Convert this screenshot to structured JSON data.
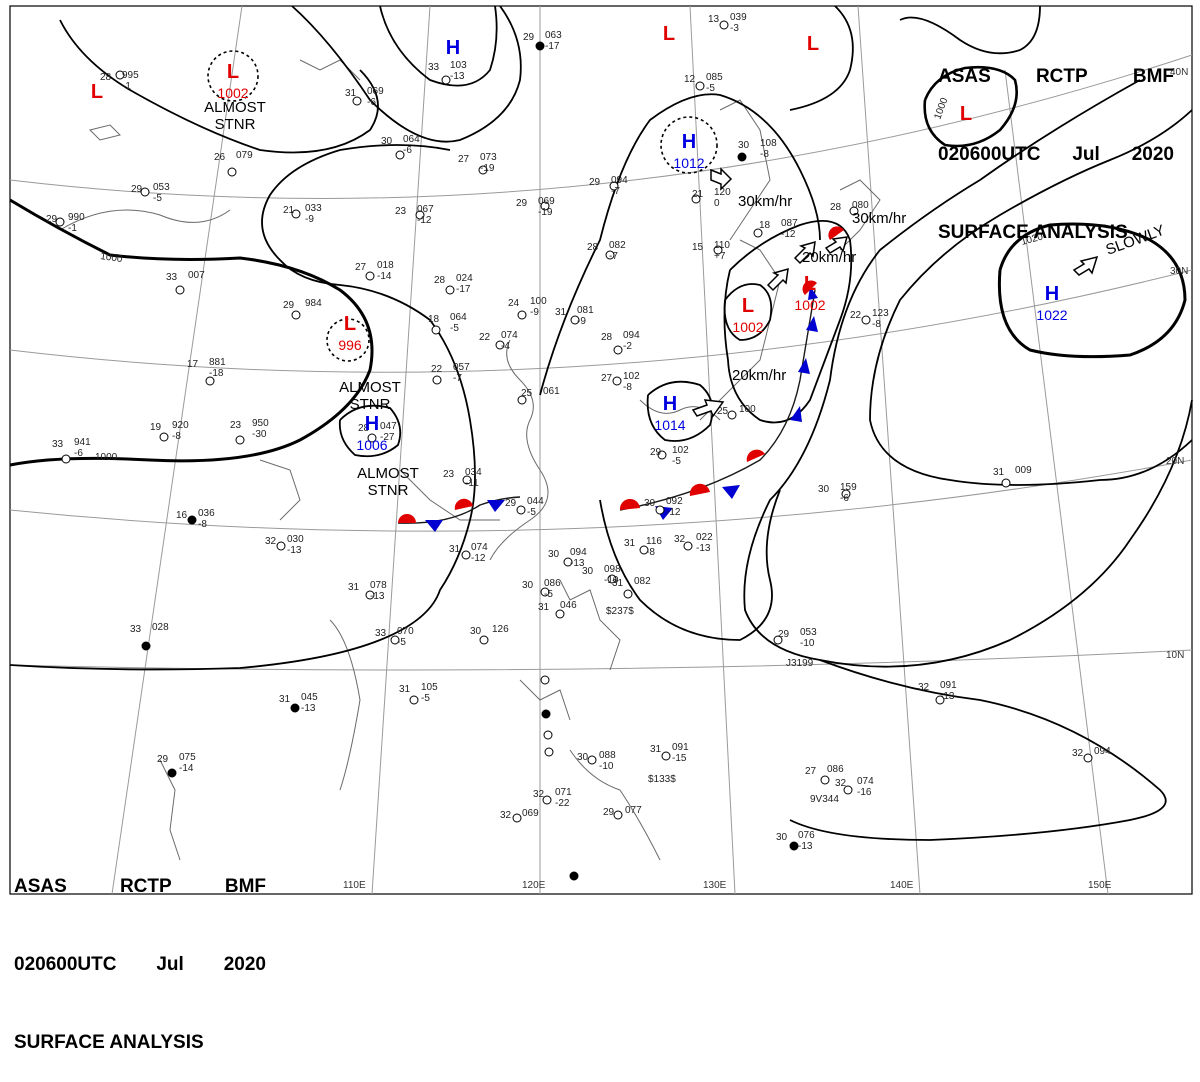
{
  "header": {
    "agency": "ASAS",
    "center": "RCTP",
    "code": "BMF",
    "datetime": "020600UTC",
    "month": "Jul",
    "year": "2020",
    "title": "SURFACE ANALYSIS"
  },
  "axes": {
    "longitudes": [
      "110E",
      "120E",
      "130E",
      "140E",
      "150E"
    ],
    "latitudes": [
      "40N",
      "30N",
      "20N",
      "10N"
    ]
  },
  "isobars": [
    "1000",
    "1000",
    "1000",
    "1020"
  ],
  "pressure_systems": [
    {
      "type": "L",
      "value": "1002",
      "color": "#e00000"
    },
    {
      "type": "L",
      "value": "",
      "color": "#e00000"
    },
    {
      "type": "L",
      "value": "",
      "color": "#e00000"
    },
    {
      "type": "L",
      "value": "",
      "color": "#e00000"
    },
    {
      "type": "L",
      "value": "",
      "color": "#e00000"
    },
    {
      "type": "L",
      "value": "996",
      "color": "#e00000"
    },
    {
      "type": "L",
      "value": "1002",
      "color": "#e00000"
    },
    {
      "type": "L",
      "value": "1002",
      "color": "#e00000"
    },
    {
      "type": "H",
      "value": "",
      "color": "#0000e0"
    },
    {
      "type": "H",
      "value": "1012",
      "color": "#0000e0"
    },
    {
      "type": "H",
      "value": "1006",
      "color": "#0000e0"
    },
    {
      "type": "H",
      "value": "1014",
      "color": "#0000e0"
    },
    {
      "type": "H",
      "value": "1022",
      "color": "#0000e0"
    }
  ],
  "labels": {
    "almost_stnr_1": "ALMOST\nSTNR",
    "almost_stnr_2": "ALMOST\nSTNR",
    "almost_stnr_3": "ALMOST\nSTNR",
    "slowly": "SLOWLY"
  },
  "movements": [
    "30km/hr",
    "20km/hr",
    "30km/hr",
    "20km/hr"
  ],
  "stations": [
    {
      "t": "28",
      "p": "995",
      "sub": "-1"
    },
    {
      "t": "29",
      "p": "063",
      "sub": "-17"
    },
    {
      "t": "33",
      "p": "103",
      "sub": "-13"
    },
    {
      "t": "13",
      "p": "039",
      "sub": "-3"
    },
    {
      "t": "31",
      "p": "069",
      "sub": "-6"
    },
    {
      "t": "30",
      "p": "064",
      "sub": "-6"
    },
    {
      "t": "27",
      "p": "073",
      "sub": "-19"
    },
    {
      "t": "12",
      "p": "085",
      "sub": "-5"
    },
    {
      "t": "26",
      "p": "079",
      "sub": ""
    },
    {
      "t": "29",
      "p": "053",
      "sub": "-5"
    },
    {
      "t": "21",
      "p": "033",
      "sub": "-9"
    },
    {
      "t": "23",
      "p": "067",
      "sub": "-12"
    },
    {
      "t": "29",
      "p": "094",
      "sub": "-7"
    },
    {
      "t": "29",
      "p": "069",
      "sub": "-19"
    },
    {
      "t": "21",
      "p": "120",
      "sub": "0"
    },
    {
      "t": "30",
      "p": "108",
      "sub": "-8"
    },
    {
      "t": "28",
      "p": "080",
      "sub": ""
    },
    {
      "t": "29",
      "p": "990",
      "sub": "-1"
    },
    {
      "t": "27",
      "p": "018",
      "sub": "-14"
    },
    {
      "t": "28",
      "p": "024",
      "sub": "-17"
    },
    {
      "t": "28",
      "p": "082",
      "sub": "-7"
    },
    {
      "t": "15",
      "p": "110",
      "sub": "+7"
    },
    {
      "t": "18",
      "p": "087",
      "sub": "-12"
    },
    {
      "t": "33",
      "p": "007",
      "sub": ""
    },
    {
      "t": "29",
      "p": "984",
      "sub": ""
    },
    {
      "t": "18",
      "p": "064",
      "sub": "-5"
    },
    {
      "t": "24",
      "p": "100",
      "sub": "-9"
    },
    {
      "t": "31",
      "p": "081",
      "sub": "-9"
    },
    {
      "t": "22",
      "p": "123",
      "sub": "-8"
    },
    {
      "t": "22",
      "p": "074",
      "sub": "-4"
    },
    {
      "t": "28",
      "p": "094",
      "sub": "-2"
    },
    {
      "t": "17",
      "p": "881",
      "sub": "-18"
    },
    {
      "t": "22",
      "p": "057",
      "sub": "-7"
    },
    {
      "t": "25",
      "p": "061",
      "sub": ""
    },
    {
      "t": "27",
      "p": "102",
      "sub": "-8"
    },
    {
      "t": "19",
      "p": "920",
      "sub": "-8"
    },
    {
      "t": "23",
      "p": "950",
      "sub": "-30"
    },
    {
      "t": "28",
      "p": "047",
      "sub": "-27"
    },
    {
      "t": "25",
      "p": "100",
      "sub": ""
    },
    {
      "t": "29",
      "p": "102",
      "sub": "-5"
    },
    {
      "t": "33",
      "p": "941",
      "sub": "-6"
    },
    {
      "t": "23",
      "p": "034",
      "sub": "-11"
    },
    {
      "t": "29",
      "p": "044",
      "sub": "-5"
    },
    {
      "t": "30",
      "p": "092",
      "sub": "-12"
    },
    {
      "t": "30",
      "p": "159",
      "sub": "-6"
    },
    {
      "t": "31",
      "p": "009",
      "sub": ""
    },
    {
      "t": "16",
      "p": "036",
      "sub": "-8"
    },
    {
      "t": "32",
      "p": "030",
      "sub": "-13"
    },
    {
      "t": "31",
      "p": "074",
      "sub": "-12"
    },
    {
      "t": "30",
      "p": "094",
      "sub": "-13"
    },
    {
      "t": "31",
      "p": "116",
      "sub": "-8"
    },
    {
      "t": "32",
      "p": "022",
      "sub": "-13"
    },
    {
      "t": "31",
      "p": "078",
      "sub": "-13"
    },
    {
      "t": "30",
      "p": "086",
      "sub": "-5"
    },
    {
      "t": "30",
      "p": "098",
      "sub": "-10"
    },
    {
      "t": "31",
      "p": "082",
      "sub": ""
    },
    {
      "t": "31",
      "p": "046",
      "sub": ""
    },
    {
      "t": "33",
      "p": "028",
      "sub": ""
    },
    {
      "t": "33",
      "p": "070",
      "sub": "-5"
    },
    {
      "t": "30",
      "p": "126",
      "sub": ""
    },
    {
      "t": "29",
      "p": "053",
      "sub": "-10"
    },
    {
      "t": "31",
      "p": "045",
      "sub": "-13"
    },
    {
      "t": "31",
      "p": "105",
      "sub": "-5"
    },
    {
      "t": "32",
      "p": "091",
      "sub": "-13"
    },
    {
      "t": "31",
      "p": "091",
      "sub": "-15"
    },
    {
      "t": "32",
      "p": "094",
      "sub": ""
    },
    {
      "t": "27",
      "p": "086",
      "sub": ""
    },
    {
      "t": "29",
      "p": "075",
      "sub": "-14"
    },
    {
      "t": "30",
      "p": "088",
      "sub": "-10"
    },
    {
      "t": "32",
      "p": "074",
      "sub": "-16"
    },
    {
      "t": "32",
      "p": "071",
      "sub": "-22"
    },
    {
      "t": "32",
      "p": "069",
      "sub": ""
    },
    {
      "t": "29",
      "p": "077",
      "sub": ""
    },
    {
      "t": "30",
      "p": "076",
      "sub": "-13"
    }
  ],
  "ship_ids": [
    "$237$",
    "J3199",
    "$133$",
    "9V344"
  ]
}
